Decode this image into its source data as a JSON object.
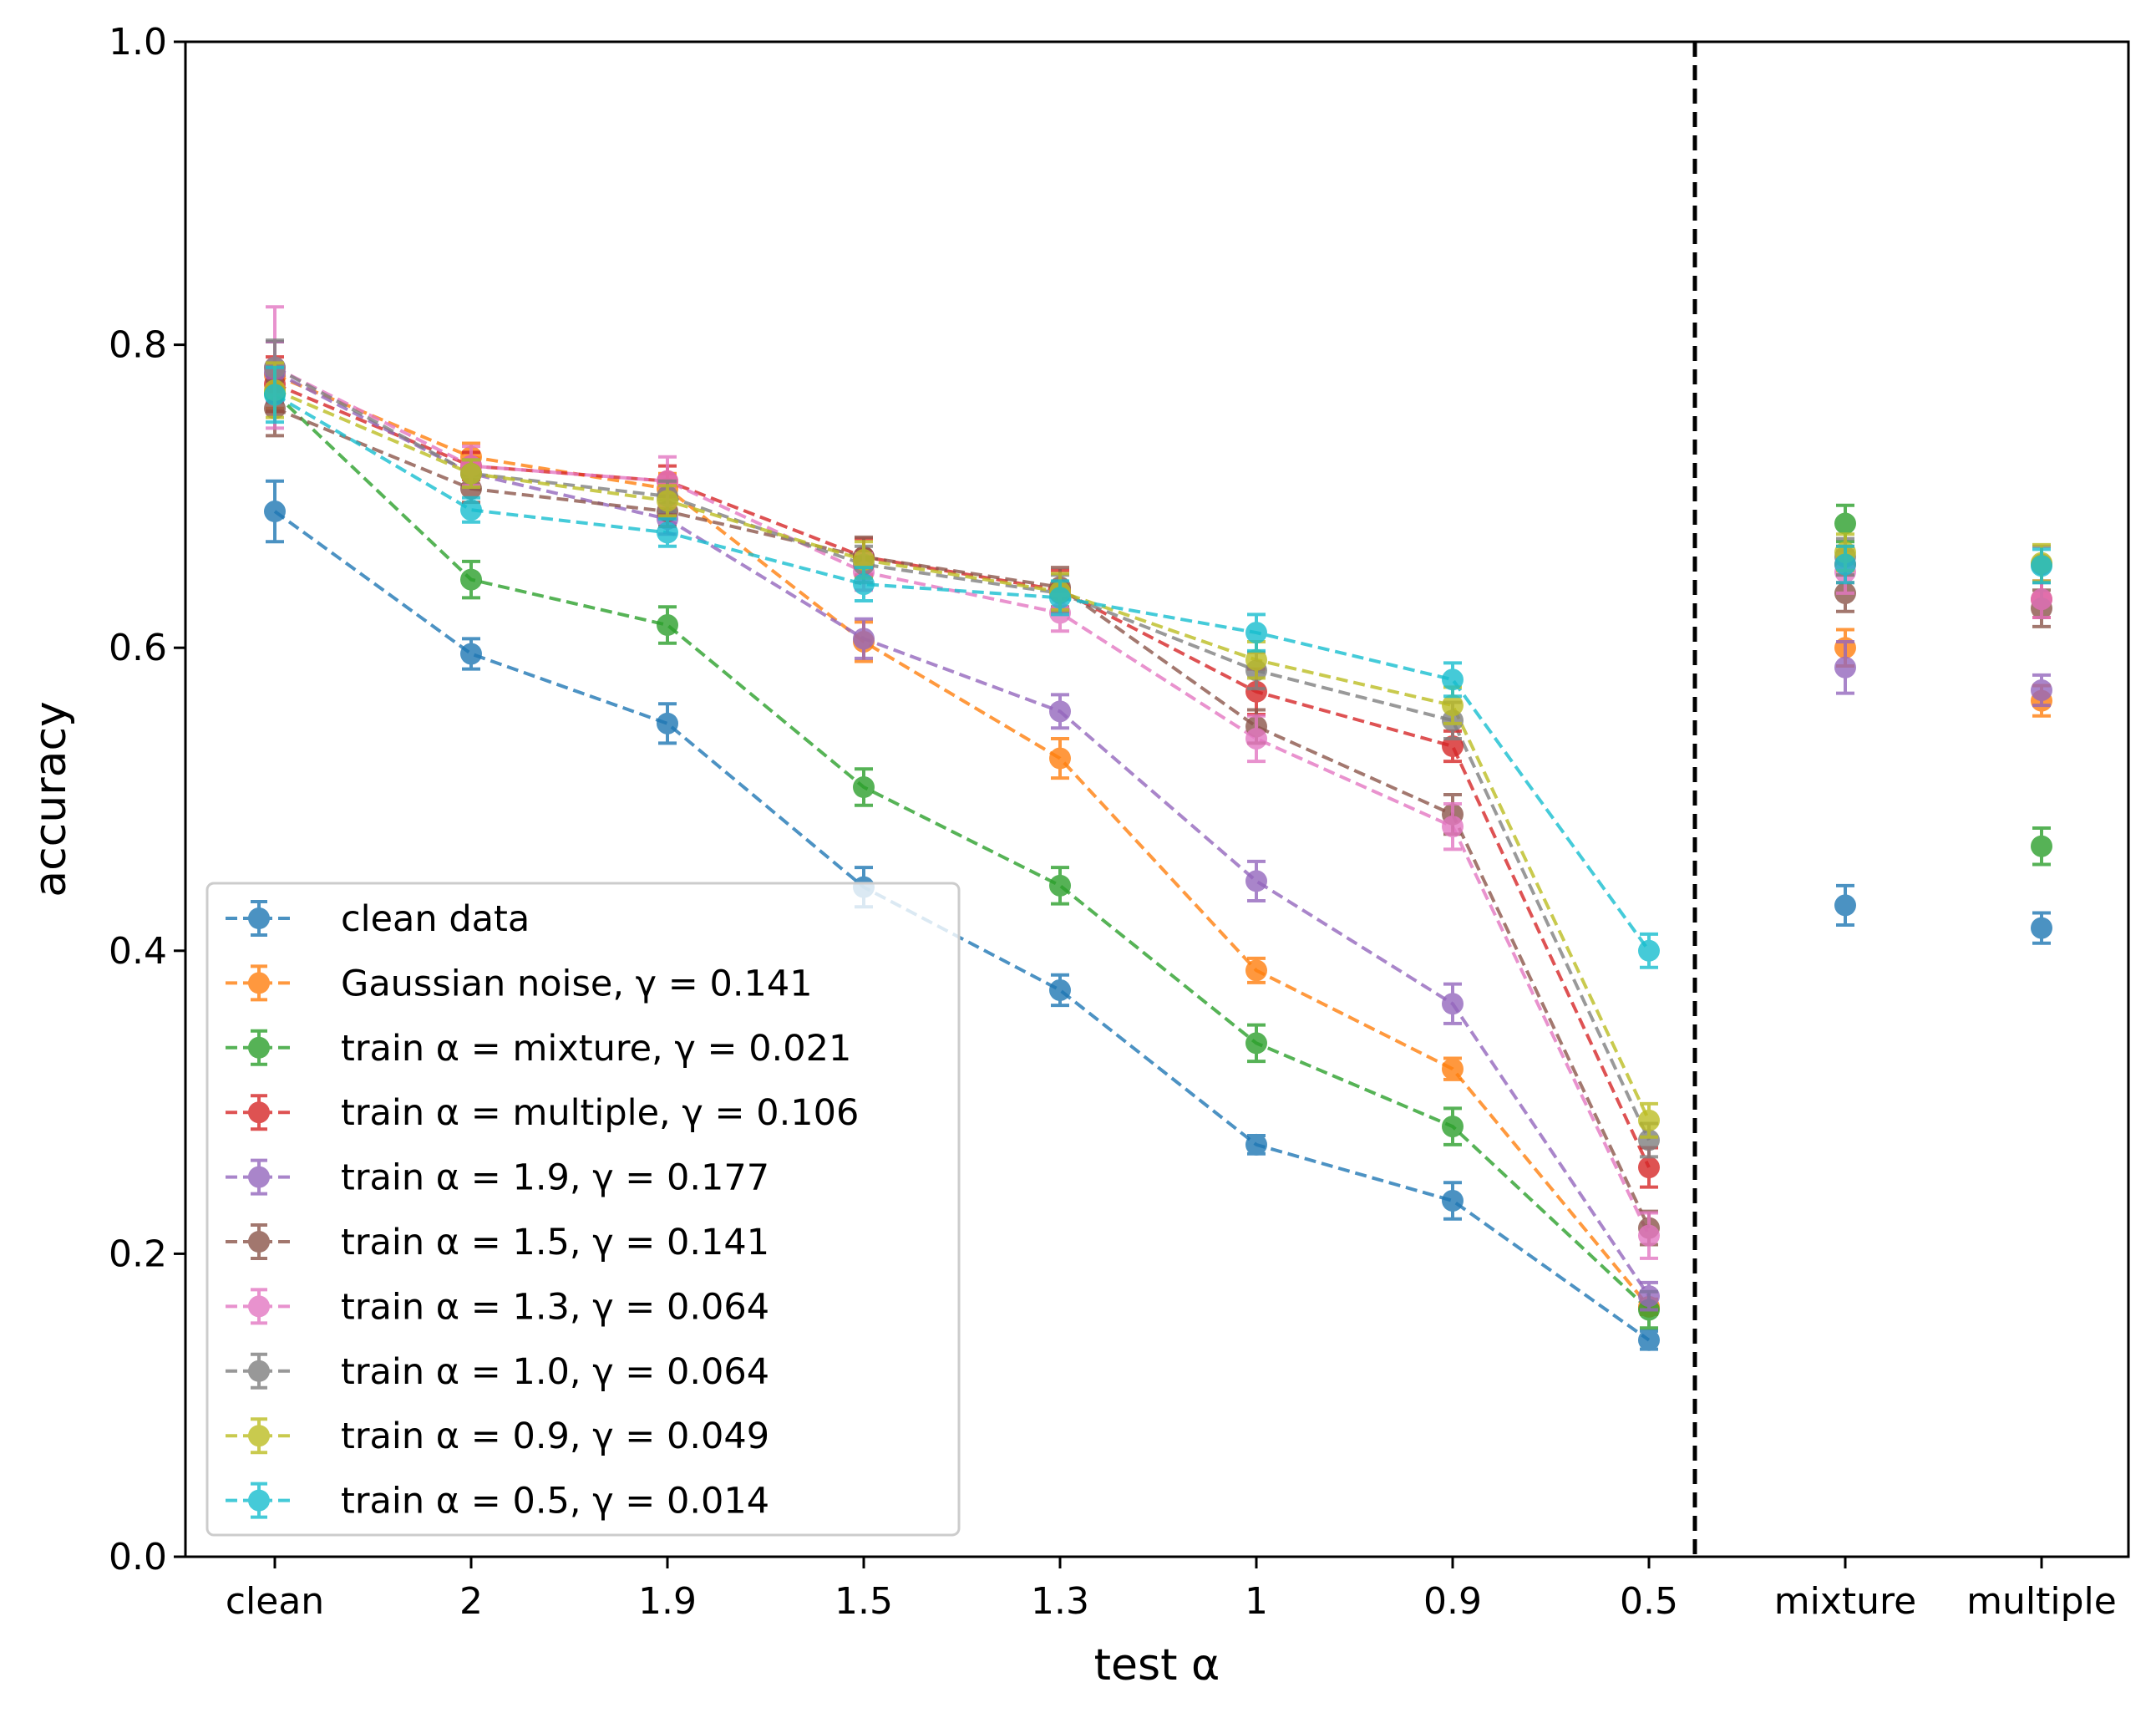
{
  "chart_data": {
    "type": "scatter",
    "xlabel": "test α",
    "ylabel": "accuracy",
    "ylim": [
      0,
      1
    ],
    "yticks": [
      "0.0",
      "0.2",
      "0.4",
      "0.6",
      "0.8",
      "1.0"
    ],
    "categories": [
      "clean",
      "2",
      "1.9",
      "1.5",
      "1.3",
      "1",
      "0.9",
      "0.5",
      "mixture",
      "multiple"
    ],
    "connected_points": 8,
    "separator_after": "0.5",
    "grid": false,
    "legend_position": "lower-left",
    "series": [
      {
        "name": "clean data",
        "color": "#1f77b4",
        "values": [
          0.69,
          0.596,
          0.55,
          0.442,
          0.374,
          0.272,
          0.235,
          0.143,
          0.43,
          0.415
        ],
        "errors": [
          0.02,
          0.01,
          0.013,
          0.013,
          0.01,
          0.006,
          0.012,
          0.006,
          0.013,
          0.01
        ]
      },
      {
        "name": "Gaussian noise, γ = 0.141",
        "color": "#ff7f0e",
        "values": [
          0.78,
          0.726,
          0.705,
          0.604,
          0.527,
          0.387,
          0.322,
          0.165,
          0.6,
          0.565
        ],
        "errors": [
          0.022,
          0.009,
          0.01,
          0.013,
          0.013,
          0.008,
          0.007,
          0.005,
          0.012,
          0.01
        ]
      },
      {
        "name": "train α = mixture, γ = 0.021",
        "color": "#2ca02c",
        "values": [
          0.768,
          0.645,
          0.615,
          0.508,
          0.443,
          0.339,
          0.284,
          0.163,
          0.682,
          0.469
        ]
      },
      {
        "name": "train α = multiple, γ = 0.106",
        "color": "#d62728",
        "values": [
          0.774,
          0.72,
          0.71,
          0.66,
          0.638,
          0.571,
          0.535,
          0.257,
          0.655,
          0.632
        ],
        "errors": [
          0.018,
          0.009,
          0.01,
          0.012,
          0.013,
          0.015,
          0.01,
          0.013,
          0.012,
          0.012
        ]
      },
      {
        "name": "train α = 1.9, γ = 0.177",
        "color": "#9467bd",
        "values": [
          0.782,
          0.715,
          0.685,
          0.606,
          0.558,
          0.446,
          0.365,
          0.172,
          0.587,
          0.572
        ],
        "errors": [
          0.02,
          0.009,
          0.01,
          0.013,
          0.011,
          0.013,
          0.013,
          0.009,
          0.017,
          0.01
        ]
      },
      {
        "name": "train α = 1.5, γ = 0.141",
        "color": "#8c564b",
        "values": [
          0.758,
          0.705,
          0.69,
          0.66,
          0.64,
          0.548,
          0.49,
          0.217,
          0.636,
          0.626
        ],
        "errors": [
          0.018,
          0.009,
          0.01,
          0.013,
          0.013,
          0.011,
          0.013,
          0.011,
          0.012,
          0.012
        ]
      },
      {
        "name": "train α = 1.3, γ = 0.064",
        "color": "#e377c2",
        "values": [
          0.785,
          0.72,
          0.71,
          0.65,
          0.623,
          0.54,
          0.482,
          0.212,
          0.65,
          0.632
        ],
        "errors": [
          0.04,
          0.013,
          0.016,
          0.012,
          0.012,
          0.015,
          0.015,
          0.015,
          0.014,
          0.012
        ]
      },
      {
        "name": "train α = 1.0, γ = 0.064",
        "color": "#7f7f7f",
        "values": [
          0.785,
          0.715,
          0.7,
          0.655,
          0.636,
          0.585,
          0.552,
          0.275,
          0.66,
          0.655
        ],
        "errors": [
          0.018,
          0.009,
          0.01,
          0.012,
          0.012,
          0.012,
          0.012,
          0.011,
          0.012,
          0.012
        ]
      },
      {
        "name": "train α = 0.9, γ = 0.049",
        "color": "#bcbd22",
        "values": [
          0.77,
          0.715,
          0.697,
          0.658,
          0.637,
          0.592,
          0.562,
          0.288,
          0.663,
          0.656
        ],
        "errors": [
          0.018,
          0.009,
          0.01,
          0.012,
          0.012,
          0.012,
          0.012,
          0.011,
          0.012,
          0.012
        ]
      },
      {
        "name": "train α = 0.5, γ = 0.014",
        "color": "#17becf",
        "values": [
          0.767,
          0.691,
          0.676,
          0.642,
          0.633,
          0.61,
          0.579,
          0.4,
          0.655,
          0.654
        ],
        "errors": [
          0.018,
          0.008,
          0.009,
          0.011,
          0.011,
          0.012,
          0.011,
          0.011,
          0.012,
          0.011
        ]
      }
    ]
  }
}
